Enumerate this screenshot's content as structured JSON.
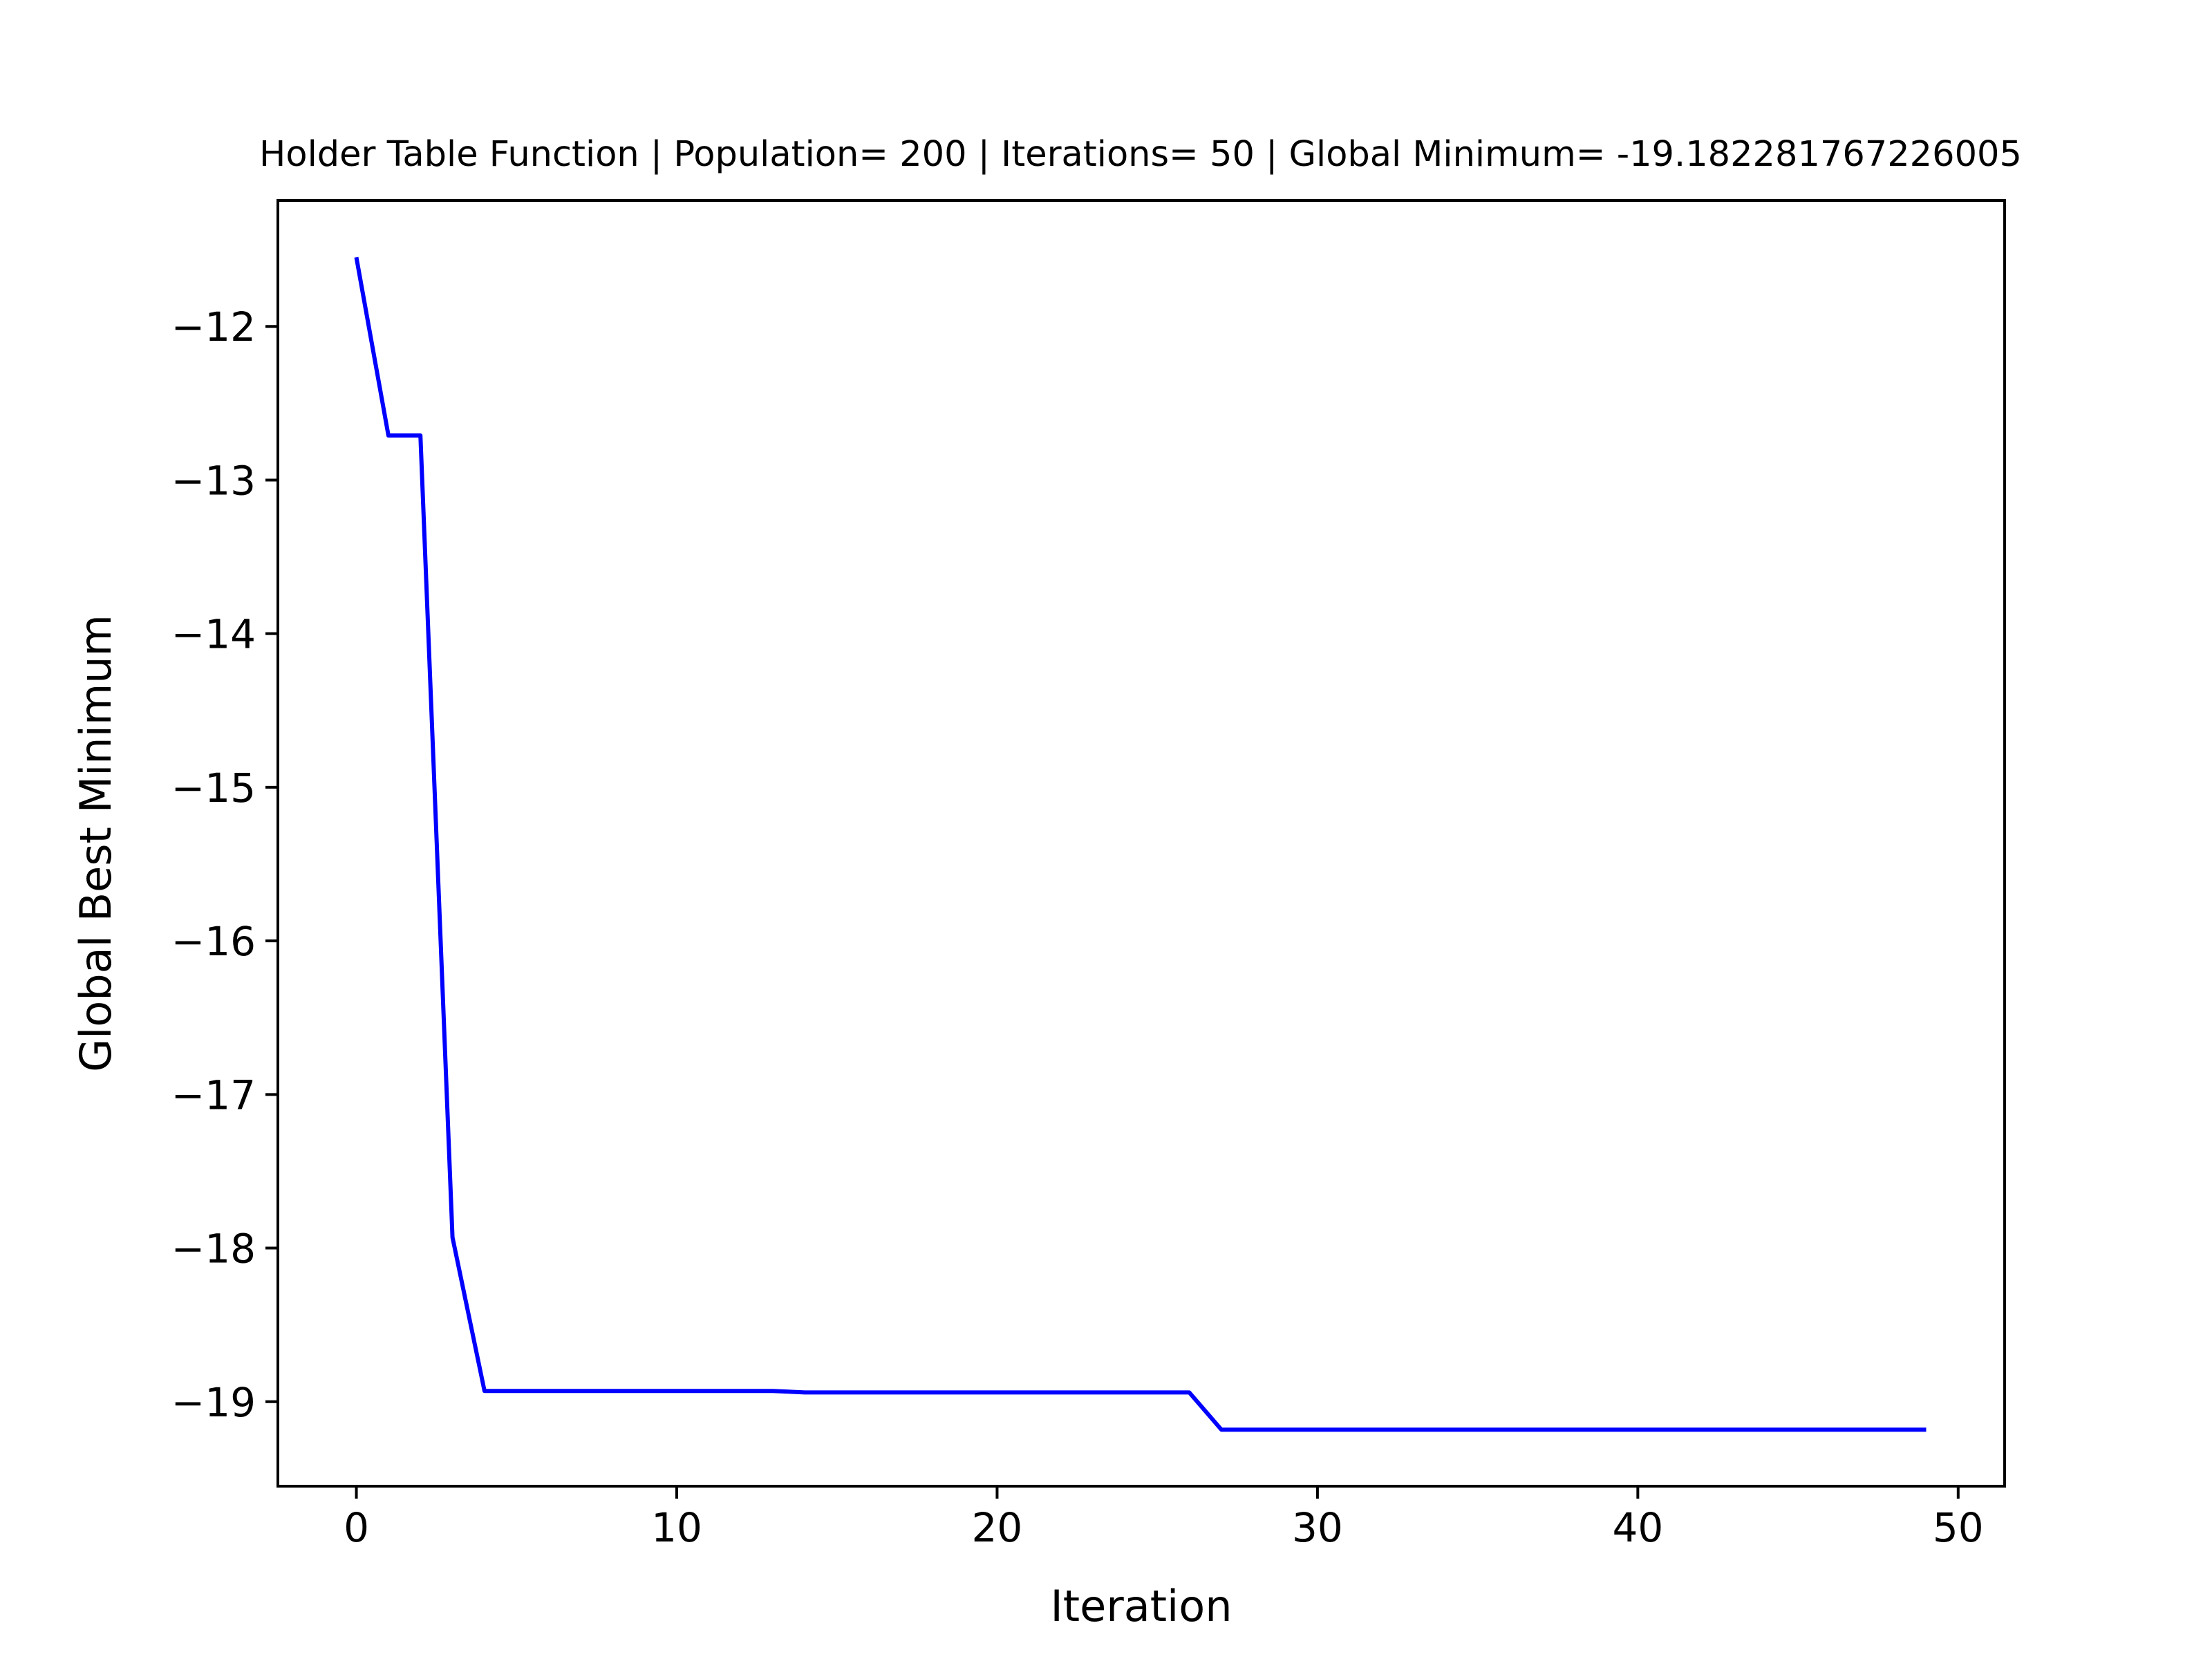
{
  "chart_data": {
    "type": "line",
    "title": "Holder Table Function | Population= 200 | Iterations= 50 | Global Minimum= -19.182281767226005",
    "xlabel": "Iteration",
    "ylabel": "Global Best Minimum",
    "xlim": [
      -2.45,
      51.45
    ],
    "ylim": [
      -19.55,
      -11.18
    ],
    "xticks": [
      0,
      10,
      20,
      30,
      40,
      50
    ],
    "yticks": [
      -12,
      -13,
      -14,
      -15,
      -16,
      -17,
      -18,
      -19
    ],
    "xtick_labels": [
      "0",
      "10",
      "20",
      "30",
      "40",
      "50"
    ],
    "ytick_labels": [
      "−12",
      "−13",
      "−14",
      "−15",
      "−16",
      "−17",
      "−18",
      "−19"
    ],
    "grid": false,
    "line_color": "#0000ff",
    "series": [
      {
        "x": [
          0,
          1,
          2,
          3,
          4,
          5,
          6,
          7,
          8,
          9,
          10,
          11,
          12,
          13,
          14,
          15,
          16,
          17,
          18,
          19,
          20,
          21,
          22,
          23,
          24,
          25,
          26,
          27,
          28,
          29,
          30,
          31,
          32,
          33,
          34,
          35,
          36,
          37,
          38,
          39,
          40,
          41,
          42,
          43,
          44,
          45,
          46,
          47,
          48,
          49
        ],
        "values": [
          -11.55,
          -12.71,
          -12.71,
          -17.93,
          -18.93,
          -18.93,
          -18.93,
          -18.93,
          -18.93,
          -18.93,
          -18.93,
          -18.93,
          -18.93,
          -18.93,
          -18.94,
          -18.94,
          -18.94,
          -18.94,
          -18.94,
          -18.94,
          -18.94,
          -18.94,
          -18.94,
          -18.94,
          -18.94,
          -18.94,
          -18.94,
          -19.182,
          -19.182,
          -19.182,
          -19.182,
          -19.182,
          -19.182,
          -19.182,
          -19.182,
          -19.182,
          -19.182,
          -19.182,
          -19.182,
          -19.182,
          -19.182,
          -19.182,
          -19.182,
          -19.182,
          -19.182,
          -19.182,
          -19.182,
          -19.182,
          -19.182,
          -19.182
        ]
      }
    ]
  }
}
